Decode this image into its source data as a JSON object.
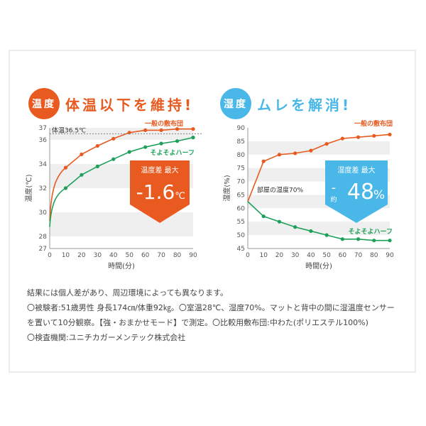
{
  "colors": {
    "orange": "#e85a1f",
    "green": "#1ea05a",
    "blue": "#49b7e8",
    "axis_text": "#555555",
    "band": "#efefef"
  },
  "chart_data": [
    {
      "type": "line",
      "title_badge": "温度",
      "title": "体温以下を維持!",
      "xlabel": "時間(分)",
      "ylabel": "温度(℃)",
      "xlim": [
        0,
        90
      ],
      "ylim": [
        27,
        37
      ],
      "x_ticks": [
        0,
        10,
        20,
        30,
        40,
        50,
        60,
        70,
        80,
        90
      ],
      "y_ticks": [
        27,
        28,
        30,
        32,
        34,
        36,
        37
      ],
      "annotations": {
        "reference_label": "体温36.5℃",
        "reference_value": 36.5
      },
      "callout": {
        "label": "温度差 最大",
        "value": "-1.6",
        "unit": "℃"
      },
      "series": [
        {
          "name": "一般の敷布団",
          "x": [
            0,
            10,
            20,
            30,
            40,
            50,
            60,
            70,
            80,
            90
          ],
          "values": [
            29.3,
            33.7,
            34.8,
            35.5,
            36.1,
            36.6,
            36.8,
            36.8,
            36.9,
            36.9
          ]
        },
        {
          "name": "そよそよハーフ",
          "x": [
            0,
            10,
            20,
            30,
            40,
            50,
            60,
            70,
            80,
            90
          ],
          "values": [
            28.8,
            32.0,
            33.1,
            33.8,
            34.4,
            35.0,
            35.4,
            35.7,
            35.9,
            36.2
          ]
        }
      ]
    },
    {
      "type": "line",
      "title_badge": "湿度",
      "title": "ムレを解消!",
      "xlabel": "時間(分)",
      "ylabel": "湿度(%)",
      "xlim": [
        0,
        90
      ],
      "ylim": [
        45,
        90
      ],
      "x_ticks": [
        0,
        10,
        20,
        30,
        40,
        50,
        60,
        70,
        80,
        90
      ],
      "y_ticks": [
        45,
        50,
        55,
        60,
        65,
        70,
        75,
        80,
        85,
        90
      ],
      "annotations": {
        "room_label": "部屋の湿度70%"
      },
      "callout": {
        "label": "湿度差 最大",
        "prefix": "-",
        "small": "約",
        "value": "48",
        "unit": "%"
      },
      "series": [
        {
          "name": "一般の敷布団",
          "x": [
            0,
            10,
            20,
            30,
            40,
            50,
            60,
            70,
            80,
            90
          ],
          "values": [
            62.5,
            77.5,
            80.0,
            80.5,
            81.5,
            84.0,
            86.0,
            86.5,
            87.0,
            87.5
          ]
        },
        {
          "name": "そよそよハーフ",
          "x": [
            0,
            10,
            20,
            30,
            40,
            50,
            60,
            70,
            80,
            90
          ],
          "values": [
            62.5,
            57.0,
            55.0,
            53.0,
            51.5,
            50.0,
            48.5,
            48.5,
            48.0,
            48.0
          ]
        }
      ]
    }
  ],
  "notes": [
    "結果には個人差があり、周辺環境によっても異なります。",
    "〇被験者:51歳男性 身長174㎝/体重92㎏。〇室温28℃、湿度70%。マットと背中の間に湿温度センサー",
    "を置いて10分観察。【強・おまかせモード】で測定。〇比較用敷布団:中わた(ポリエステル100%)",
    "〇検査機関:ユニチカガーメンテック株式会社"
  ]
}
